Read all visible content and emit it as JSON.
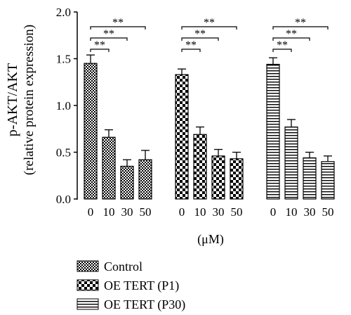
{
  "chart_data": {
    "type": "bar",
    "title": "",
    "ylabel_line1": "p-AKT/AKT",
    "ylabel_line2": "(relative protein expression)",
    "xlabel": "(μM)",
    "ylim": [
      0,
      2.0
    ],
    "y_ticks": [
      "0.0",
      "0.5",
      "1.0",
      "1.5",
      "2.0"
    ],
    "y_tick_values": [
      0,
      0.5,
      1.0,
      1.5,
      2.0
    ],
    "categories": [
      "0",
      "10",
      "30",
      "50"
    ],
    "legend_position": "bottom-left",
    "significance_label": "**",
    "series": [
      {
        "name": "Control",
        "pattern": "checker-fine",
        "values": [
          1.45,
          0.66,
          0.35,
          0.42
        ],
        "errors": [
          0.09,
          0.08,
          0.07,
          0.1
        ]
      },
      {
        "name": "OE TERT (P1)",
        "pattern": "checker-coarse",
        "values": [
          1.33,
          0.69,
          0.46,
          0.43
        ],
        "errors": [
          0.06,
          0.08,
          0.07,
          0.07
        ]
      },
      {
        "name": "OE TERT (P30)",
        "pattern": "horizontal-lines",
        "values": [
          1.44,
          0.77,
          0.44,
          0.4
        ],
        "errors": [
          0.07,
          0.08,
          0.06,
          0.06
        ]
      }
    ]
  }
}
